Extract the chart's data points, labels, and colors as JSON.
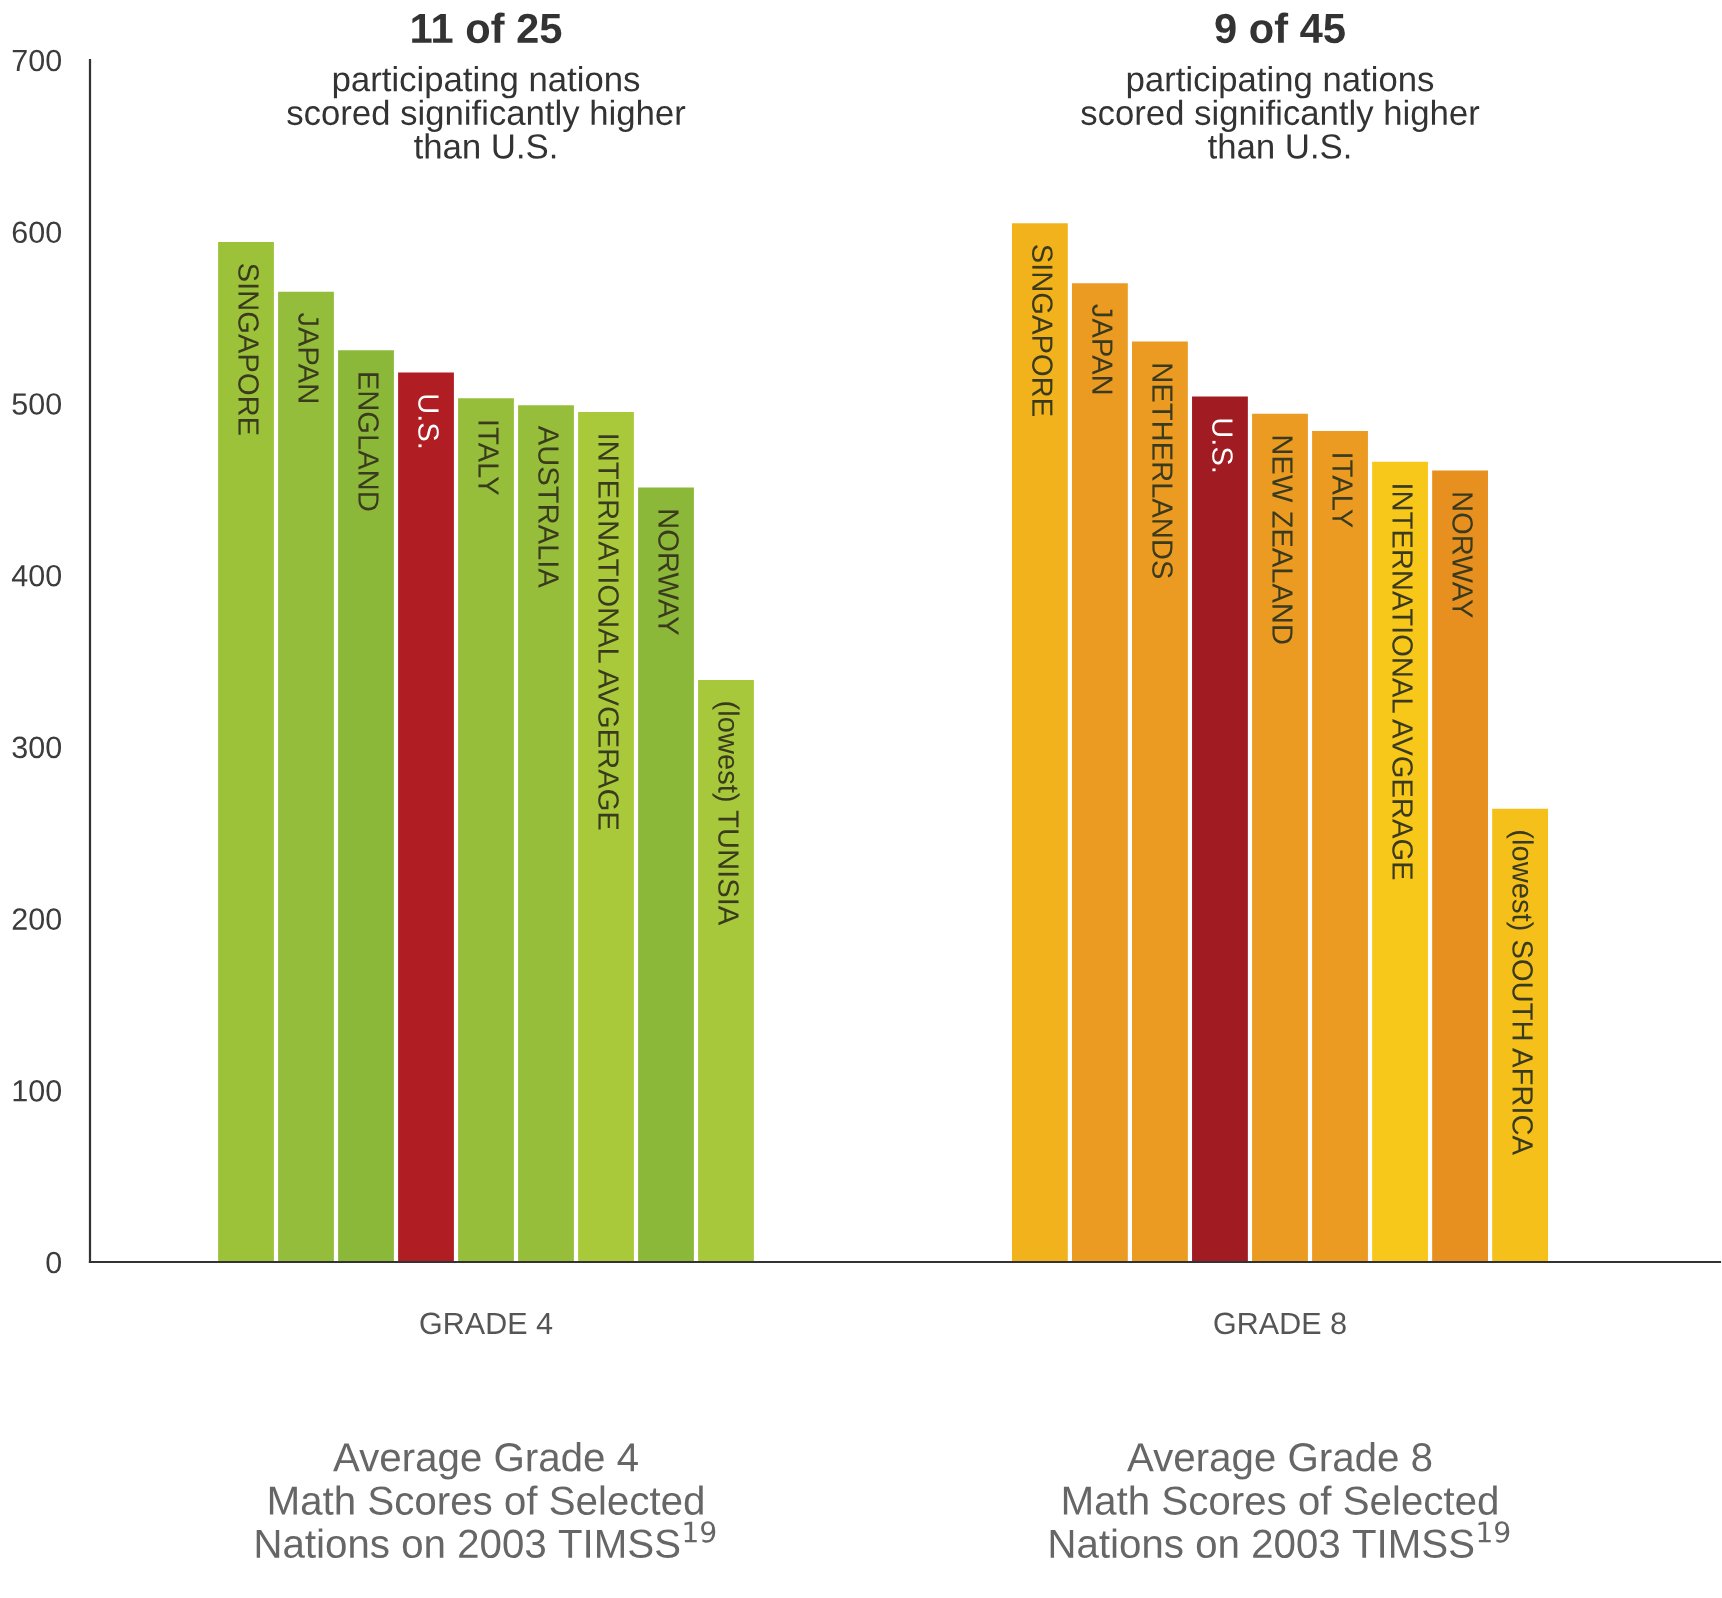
{
  "chart_data": [
    {
      "type": "bar",
      "title": "11 of 25",
      "subtitle": "participating nations\nscored significantly higher\nthan U.S.",
      "xlabel": "GRADE 4",
      "categories": [
        "SINGAPORE",
        "JAPAN",
        "ENGLAND",
        "U.S.",
        "ITALY",
        "AUSTRALIA",
        "INTERNATIONAL AVGERAGE",
        "NORWAY",
        "(lowest) TUNISIA"
      ],
      "values": [
        594,
        565,
        531,
        518,
        503,
        499,
        495,
        451,
        339
      ],
      "colors": [
        "#9cc23a",
        "#93bd3a",
        "#8cb83a",
        "#b01e24",
        "#96be3a",
        "#96be3a",
        "#a9c93a",
        "#8cb83a",
        "#a6c83a"
      ],
      "ylim": [
        0,
        700
      ],
      "yticks": [
        0,
        100,
        200,
        300,
        400,
        500,
        600,
        700
      ],
      "annotations": [
        "Average Grade 4\nMath Scores of Selected\nNations on 2003 TIMSS$^{19}$"
      ]
    },
    {
      "type": "bar",
      "title": "9 of 45",
      "subtitle": "participating nations\nscored significantly higher\nthan U.S.",
      "xlabel": "GRADE 8",
      "categories": [
        "SINGAPORE",
        "JAPAN",
        "NETHERLANDS",
        "U.S.",
        "NEW ZEALAND",
        "ITALY",
        "INTERNATIONAL AVGERAGE",
        "NORWAY",
        "(lowest) SOUTH AFRICA"
      ],
      "values": [
        605,
        570,
        536,
        504,
        494,
        484,
        466,
        461,
        264
      ],
      "colors": [
        "#f2b21c",
        "#eb9a22",
        "#eb9a22",
        "#a01c22",
        "#eb9a22",
        "#eb9a22",
        "#f7c81a",
        "#e8901f",
        "#f5c01a"
      ],
      "ylim": [
        0,
        700
      ],
      "yticks": [
        0,
        100,
        200,
        300,
        400,
        500,
        600,
        700
      ],
      "tick_labels": false,
      "annotations": [
        "Average Grade 8\nMath Scores of Selected\nNations on 2003 TIMSS$^{19}$"
      ]
    }
  ]
}
